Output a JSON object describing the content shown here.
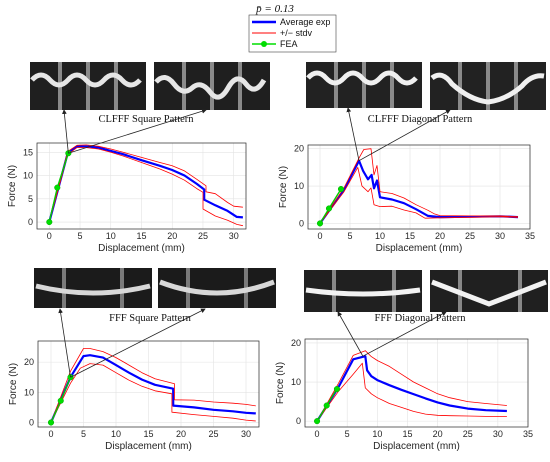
{
  "figure": {
    "title": "p̄ = 0.13",
    "legend": [
      {
        "label": "Average exp",
        "color": "#0000ff"
      },
      {
        "label": "+/− stdv",
        "color": "#ff0000"
      },
      {
        "label": "FEA",
        "color": "#00dd00"
      }
    ]
  },
  "chart_data": [
    {
      "type": "line",
      "title": "CLFFF Square Pattern",
      "xlabel": "Displacement (mm)",
      "ylabel": "Force (N)",
      "xlim": [
        -2,
        32
      ],
      "ylim": [
        -1.5,
        17
      ],
      "xticks": [
        0,
        5,
        10,
        15,
        20,
        25,
        30
      ],
      "yticks": [
        0,
        5,
        10,
        15
      ],
      "grid": true,
      "series": [
        {
          "name": "Average exp",
          "x": [
            0,
            3,
            4.5,
            6,
            8,
            10,
            12,
            15,
            18,
            20,
            22,
            24,
            25.2,
            25.2,
            27,
            29,
            30.5,
            31.5
          ],
          "y": [
            0,
            14.8,
            16.3,
            16.3,
            16,
            15.3,
            14.6,
            13.3,
            12.1,
            11.2,
            10,
            8.2,
            7,
            4.8,
            3.6,
            2.4,
            1.1,
            1
          ]
        },
        {
          "name": "+/− stdv",
          "x": [
            0,
            3,
            4.5,
            6,
            8,
            10,
            12,
            15,
            18,
            20,
            22,
            24,
            25.5,
            25.5,
            27,
            29,
            30,
            31.5
          ],
          "y": [
            0,
            15.2,
            16.5,
            16.6,
            16.3,
            15.7,
            15,
            13.9,
            12.8,
            12.1,
            11,
            9.2,
            7.8,
            6.5,
            6.1,
            4.2,
            3.4,
            3.2
          ]
        },
        {
          "name": "+/− stdv",
          "x": [
            0,
            3,
            4.5,
            6,
            8,
            10,
            12,
            15,
            18,
            20,
            22,
            24,
            25,
            25,
            27,
            29,
            30.5,
            31.5
          ],
          "y": [
            0,
            14.5,
            16,
            16,
            15.7,
            15,
            14.2,
            12.8,
            11.4,
            10.3,
            9,
            7.2,
            6.4,
            2.8,
            1.3,
            0.4,
            -0.5,
            -0.8
          ]
        },
        {
          "name": "FEA",
          "x": [
            0,
            1.3,
            3.1
          ],
          "y": [
            0,
            7.4,
            14.8
          ]
        }
      ]
    },
    {
      "type": "line",
      "title": "CLFFF Diagonal Pattern",
      "xlabel": "Displacement (mm)",
      "ylabel": "Force (N)",
      "xlim": [
        -2,
        35
      ],
      "ylim": [
        -1.5,
        21
      ],
      "xticks": [
        0,
        5,
        10,
        15,
        20,
        25,
        30,
        35
      ],
      "yticks": [
        0,
        10,
        20
      ],
      "grid": true,
      "series": [
        {
          "name": "Average exp",
          "x": [
            0,
            4,
            6.5,
            7.2,
            8,
            8.6,
            9,
            9.5,
            10,
            12,
            14,
            16,
            18,
            20,
            25,
            30,
            33
          ],
          "y": [
            0,
            9,
            16.8,
            14,
            11.8,
            13,
            9.4,
            11.5,
            7,
            6.4,
            5.4,
            3.8,
            2,
            1.7,
            1.8,
            1.9,
            1.7
          ]
        },
        {
          "name": "+/− stdv",
          "x": [
            0,
            4,
            6.5,
            7.3,
            8.5,
            9,
            9.5,
            10,
            12,
            14,
            16,
            18,
            19,
            20,
            25,
            30,
            33
          ],
          "y": [
            0,
            9.5,
            17.5,
            19.8,
            20,
            13,
            15.5,
            8.5,
            8,
            6.8,
            5,
            3.5,
            2.6,
            2.1,
            2,
            2,
            1.8
          ]
        },
        {
          "name": "+/− stdv",
          "x": [
            0,
            4,
            6.3,
            7,
            8,
            8.5,
            9,
            10,
            12,
            14,
            16,
            17.5,
            20,
            25,
            30,
            33
          ],
          "y": [
            0,
            8.5,
            15,
            10,
            8.5,
            9.5,
            5,
            4.5,
            4.6,
            3.6,
            2.8,
            1.4,
            1.5,
            1.6,
            1.8,
            1.6
          ]
        },
        {
          "name": "FEA",
          "x": [
            0,
            1.5,
            3.5
          ],
          "y": [
            0,
            4,
            9.2
          ]
        }
      ]
    },
    {
      "type": "line",
      "title": "FFF Square Pattern",
      "xlabel": "Displacement (mm)",
      "ylabel": "Force (N)",
      "xlim": [
        -2,
        32
      ],
      "ylim": [
        -1.5,
        27
      ],
      "xticks": [
        0,
        5,
        10,
        15,
        20,
        25,
        30
      ],
      "yticks": [
        0,
        10,
        20
      ],
      "grid": true,
      "series": [
        {
          "name": "Average exp",
          "x": [
            0,
            3,
            5,
            6,
            8,
            10,
            12,
            14,
            16,
            18.8,
            18.8,
            22,
            25,
            28,
            30,
            31.5
          ],
          "y": [
            0,
            15,
            22,
            22.3,
            21.5,
            19,
            16.5,
            14.2,
            12.5,
            11.2,
            5.6,
            5,
            4.2,
            3.7,
            3.2,
            3
          ]
        },
        {
          "name": "+/− stdv",
          "x": [
            0,
            3,
            5,
            6,
            8,
            10,
            12,
            14,
            16,
            19,
            19,
            22,
            25,
            28,
            30,
            31.5
          ],
          "y": [
            0,
            17,
            24.5,
            24.5,
            23.5,
            21.5,
            19,
            16.5,
            14.5,
            12.8,
            7.5,
            7.4,
            6.8,
            6.4,
            6,
            5.5
          ]
        },
        {
          "name": "+/− stdv",
          "x": [
            0,
            3,
            4.5,
            6,
            8,
            10,
            12,
            14,
            16,
            18.6,
            18.6,
            22,
            25,
            28,
            30,
            31.5
          ],
          "y": [
            0,
            13,
            18,
            19.5,
            19,
            16.5,
            14,
            12,
            10.5,
            9.5,
            3.4,
            2.6,
            2,
            1.4,
            0.8,
            0.5
          ]
        },
        {
          "name": "FEA",
          "x": [
            0,
            1.5,
            3
          ],
          "y": [
            0,
            7.2,
            15
          ]
        }
      ]
    },
    {
      "type": "line",
      "title": "FFF Diagonal Pattern",
      "xlabel": "Displacement (mm)",
      "ylabel": "Force (N)",
      "xlim": [
        -2,
        35
      ],
      "ylim": [
        -1.5,
        21
      ],
      "xticks": [
        0,
        5,
        10,
        15,
        20,
        25,
        30,
        35
      ],
      "yticks": [
        0,
        10,
        20
      ],
      "grid": true,
      "series": [
        {
          "name": "Average exp",
          "x": [
            0,
            3.5,
            6,
            8,
            8.3,
            9,
            10,
            12,
            14,
            16,
            18,
            20,
            22,
            25,
            28,
            31.5
          ],
          "y": [
            0,
            8.5,
            15.8,
            16.6,
            13,
            11.5,
            10.5,
            9.2,
            8,
            6.9,
            5.8,
            4.8,
            4,
            3.2,
            2.8,
            2.6
          ]
        },
        {
          "name": "+/− stdv",
          "x": [
            0,
            3.5,
            6,
            8,
            9,
            10,
            12,
            14,
            16,
            18,
            20,
            22,
            25,
            28,
            31.5
          ],
          "y": [
            0,
            9.5,
            16.8,
            18,
            16.5,
            15.5,
            14,
            12,
            10,
            8.5,
            7,
            6,
            5,
            4.5,
            4
          ]
        },
        {
          "name": "+/− stdv",
          "x": [
            0,
            3.5,
            6,
            7.5,
            8,
            9,
            10,
            12,
            14,
            16,
            18,
            20,
            22,
            25,
            28,
            31.5
          ],
          "y": [
            0,
            7.5,
            12,
            14.8,
            8.5,
            7,
            6,
            4.5,
            3.5,
            2.5,
            1.8,
            1.5,
            1.4,
            1.3,
            1.2,
            1.2
          ]
        },
        {
          "name": "FEA",
          "x": [
            0,
            1.6,
            3.3
          ],
          "y": [
            0,
            4,
            8.2
          ]
        }
      ]
    }
  ]
}
